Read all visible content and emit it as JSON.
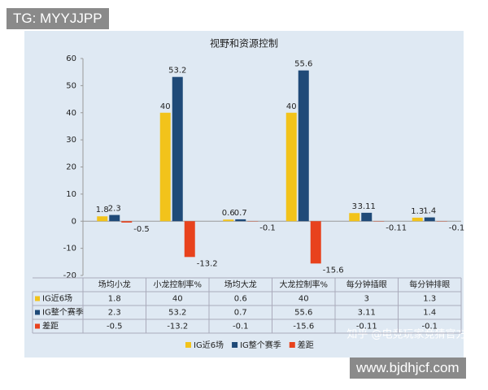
{
  "badges": {
    "top_left": "TG: MYYJJPP",
    "bottom_right": "www.bjdhjcf.com",
    "watermark": "知乎 @电竞玩家竞猜官方"
  },
  "chart_data": {
    "type": "bar",
    "title": "视野和资源控制",
    "categories": [
      "场均小龙",
      "小龙控制率%",
      "场均大龙",
      "大龙控制率%",
      "每分钟插眼",
      "每分钟排眼"
    ],
    "series": [
      {
        "name": "IG近6场",
        "color": "#f2c31b",
        "values": [
          1.8,
          40,
          0.6,
          40,
          3,
          1.3
        ]
      },
      {
        "name": "IG整个赛季",
        "color": "#1f4a78",
        "values": [
          2.3,
          53.2,
          0.7,
          55.6,
          3.11,
          1.4
        ]
      },
      {
        "name": "差距",
        "color": "#e8421d",
        "values": [
          -0.5,
          -13.2,
          -0.1,
          -15.6,
          -0.11,
          -0.1
        ]
      }
    ],
    "ylim": [
      -20,
      60
    ],
    "yticks": [
      -20,
      -10,
      0,
      10,
      20,
      30,
      40,
      50,
      60
    ],
    "grid": false,
    "legend": "bottom"
  }
}
